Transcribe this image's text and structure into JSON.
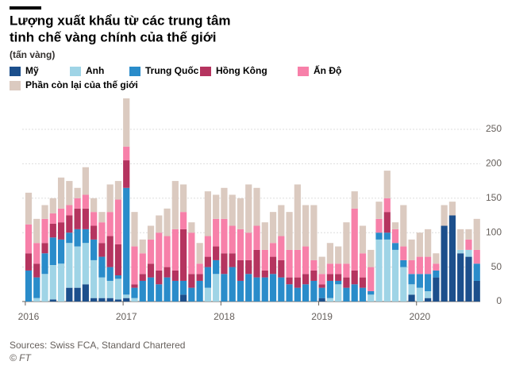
{
  "chart_data": {
    "type": "bar",
    "stacked": true,
    "title": [
      "Lượng xuất khẩu từ các trung tâm",
      "tinh chế vàng chính của thế giới"
    ],
    "subtitle": "(tấn vàng)",
    "source": "Sources: Swiss FCA, Standard Chartered",
    "credit": "© FT",
    "categories": [
      "2016",
      null,
      null,
      null,
      null,
      null,
      null,
      null,
      null,
      null,
      null,
      null,
      "2017",
      null,
      null,
      null,
      null,
      null,
      null,
      null,
      null,
      null,
      null,
      null,
      "2018",
      null,
      null,
      null,
      null,
      null,
      null,
      null,
      null,
      null,
      null,
      null,
      "2019",
      null,
      null,
      null,
      null,
      null,
      null,
      null,
      null,
      null,
      null,
      null,
      "2020",
      null,
      null,
      null,
      null,
      null,
      null,
      null
    ],
    "series": [
      {
        "name": "Mỹ",
        "color": "#1c4f8c",
        "values": [
          0,
          0,
          0,
          3,
          0,
          20,
          20,
          25,
          5,
          5,
          5,
          3,
          5,
          0,
          0,
          0,
          0,
          0,
          0,
          10,
          0,
          0,
          0,
          0,
          0,
          0,
          0,
          0,
          0,
          0,
          0,
          0,
          0,
          0,
          0,
          0,
          5,
          0,
          0,
          0,
          0,
          0,
          0,
          0,
          0,
          0,
          0,
          10,
          0,
          5,
          35,
          110,
          125,
          70,
          65,
          30
        ]
      },
      {
        "name": "Anh",
        "color": "#9fd4e6",
        "values": [
          0,
          5,
          40,
          50,
          55,
          65,
          60,
          60,
          55,
          30,
          25,
          30,
          5,
          5,
          0,
          0,
          0,
          0,
          0,
          0,
          0,
          0,
          20,
          40,
          0,
          0,
          0,
          0,
          0,
          0,
          0,
          0,
          0,
          0,
          0,
          0,
          0,
          5,
          25,
          0,
          0,
          0,
          10,
          90,
          90,
          75,
          50,
          15,
          20,
          10,
          0,
          0,
          0,
          5,
          10,
          0
        ]
      },
      {
        "name": "Trung Quốc",
        "color": "#2a8cca",
        "values": [
          45,
          30,
          30,
          40,
          35,
          15,
          25,
          20,
          30,
          30,
          20,
          5,
          155,
          15,
          30,
          35,
          25,
          35,
          30,
          20,
          20,
          30,
          30,
          20,
          40,
          50,
          30,
          40,
          35,
          35,
          40,
          35,
          25,
          20,
          25,
          30,
          15,
          25,
          5,
          20,
          25,
          20,
          5,
          10,
          10,
          10,
          10,
          15,
          20,
          25,
          10,
          0,
          0,
          0,
          0,
          25
        ]
      },
      {
        "name": "Hồng Kông",
        "color": "#b5345f",
        "values": [
          25,
          20,
          15,
          20,
          25,
          25,
          30,
          30,
          20,
          20,
          45,
          45,
          40,
          5,
          10,
          20,
          20,
          15,
          15,
          75,
          20,
          10,
          15,
          20,
          30,
          20,
          30,
          20,
          40,
          10,
          25,
          25,
          10,
          15,
          15,
          15,
          5,
          10,
          10,
          15,
          20,
          15,
          0,
          0,
          30,
          0,
          0,
          0,
          0,
          0,
          0,
          0,
          0,
          0,
          0,
          0
        ]
      },
      {
        "name": "Ấn Độ",
        "color": "#f780a9",
        "values": [
          42,
          30,
          35,
          15,
          20,
          15,
          15,
          20,
          20,
          30,
          35,
          65,
          20,
          55,
          30,
          35,
          55,
          45,
          60,
          25,
          60,
          15,
          30,
          40,
          50,
          40,
          45,
          40,
          35,
          30,
          20,
          35,
          40,
          40,
          40,
          15,
          15,
          15,
          15,
          20,
          90,
          35,
          35,
          20,
          20,
          20,
          20,
          20,
          25,
          25,
          10,
          0,
          0,
          0,
          15,
          20
        ]
      },
      {
        "name": "Phần còn lại của thế giới",
        "color": "#dbcac0",
        "values": [
          46,
          35,
          20,
          22,
          45,
          35,
          15,
          40,
          20,
          15,
          40,
          27,
          70,
          50,
          20,
          20,
          25,
          40,
          70,
          40,
          15,
          30,
          65,
          35,
          45,
          45,
          45,
          70,
          55,
          40,
          45,
          45,
          55,
          95,
          60,
          80,
          25,
          30,
          25,
          60,
          25,
          40,
          25,
          25,
          40,
          10,
          60,
          30,
          35,
          40,
          15,
          30,
          20,
          30,
          15,
          45
        ]
      }
    ],
    "ylim": [
      0,
      300
    ],
    "yticks": [
      0,
      50,
      100,
      150,
      200,
      250
    ],
    "grid": true
  }
}
